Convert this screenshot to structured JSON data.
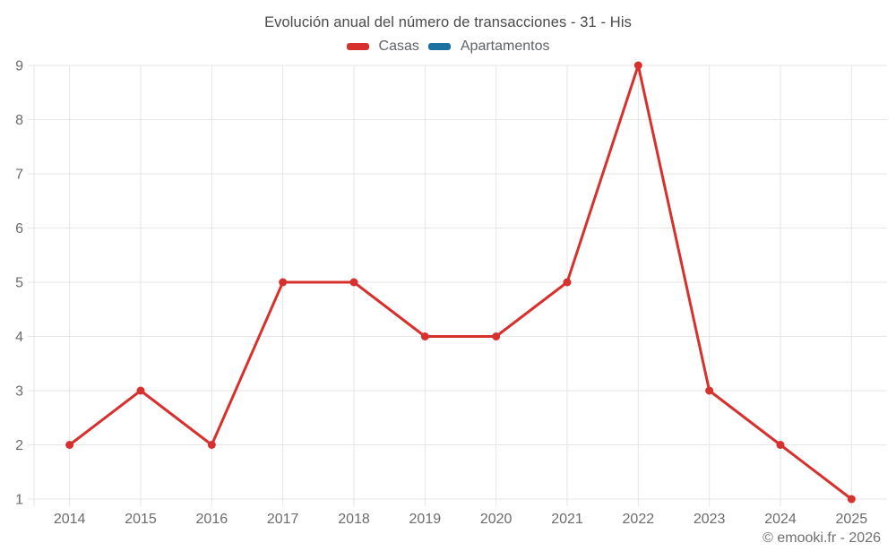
{
  "chart_data": {
    "type": "line",
    "title": "Evolución anual del número de transacciones - 31 - His",
    "categories": [
      "2014",
      "2015",
      "2016",
      "2017",
      "2018",
      "2019",
      "2020",
      "2021",
      "2022",
      "2023",
      "2024",
      "2025"
    ],
    "series": [
      {
        "name": "Casas",
        "color": "#d7312e",
        "values": [
          2,
          3,
          2,
          5,
          5,
          4,
          4,
          5,
          9,
          3,
          2,
          1
        ]
      },
      {
        "name": "Apartamentos",
        "color": "#1c71a1",
        "values": []
      }
    ],
    "ylim": [
      1,
      9
    ],
    "yticks": [
      1,
      2,
      3,
      4,
      5,
      6,
      7,
      8,
      9
    ],
    "xlabel": "",
    "ylabel": "",
    "grid": true,
    "legend_position": "top",
    "grid_color": "#e6e6e6",
    "tick_label_color": "#6b6b6b"
  },
  "footer": {
    "copyright": "© emooki.fr - 2026"
  }
}
